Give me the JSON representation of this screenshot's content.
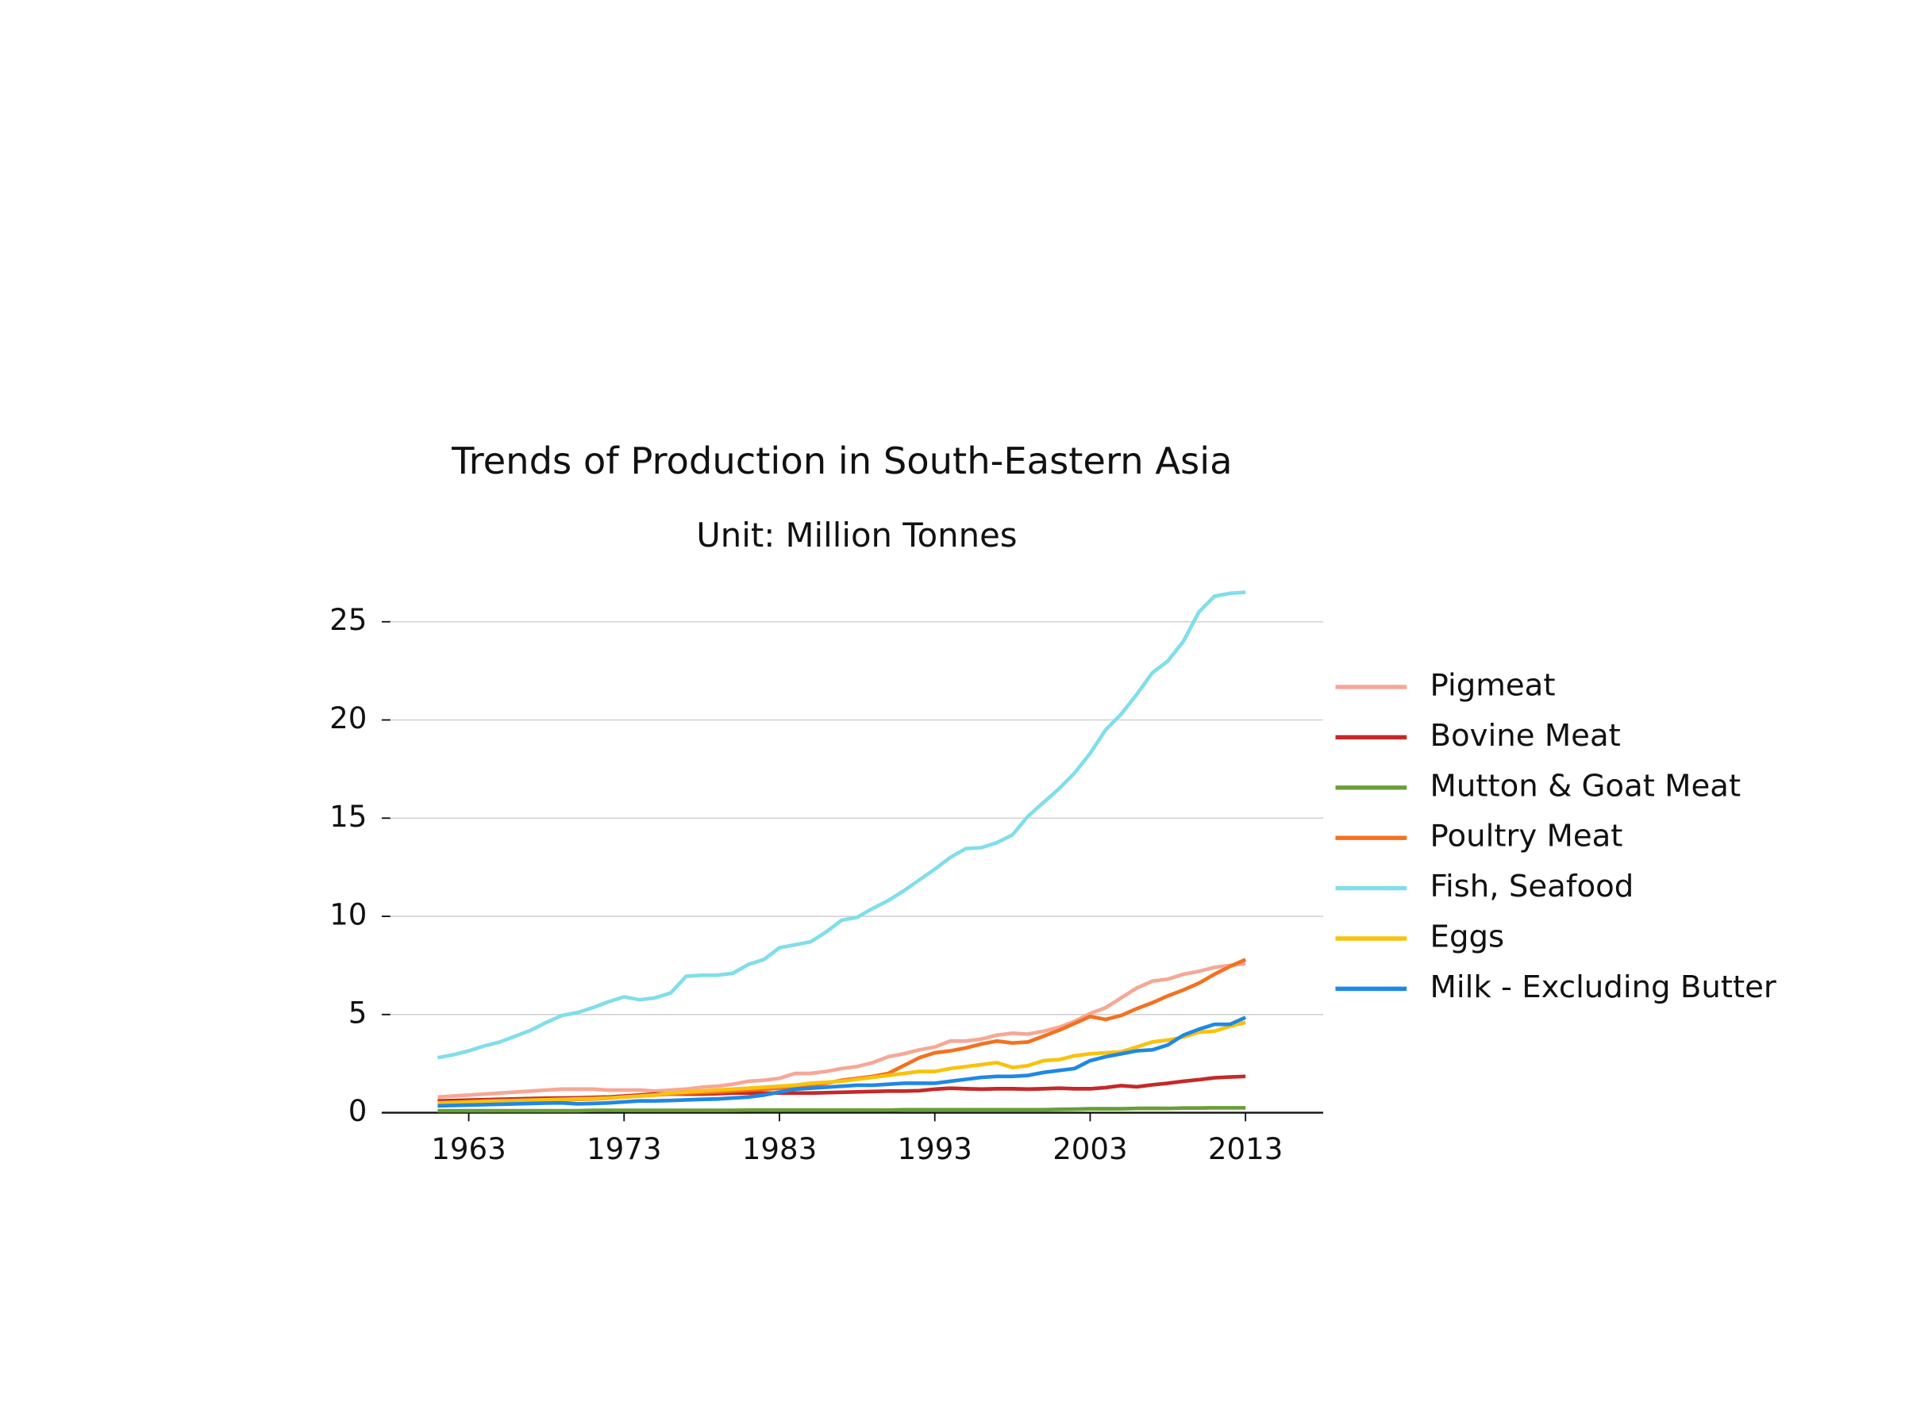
{
  "chart_data": {
    "type": "line",
    "title": "Trends of Production in South-Eastern Asia",
    "subtitle": "Unit: Million Tonnes",
    "x": [
      1961,
      1962,
      1963,
      1964,
      1965,
      1966,
      1967,
      1968,
      1969,
      1970,
      1971,
      1972,
      1973,
      1974,
      1975,
      1976,
      1977,
      1978,
      1979,
      1980,
      1981,
      1982,
      1983,
      1984,
      1985,
      1986,
      1987,
      1988,
      1989,
      1990,
      1991,
      1992,
      1993,
      1994,
      1995,
      1996,
      1997,
      1998,
      1999,
      2000,
      2001,
      2002,
      2003,
      2004,
      2005,
      2006,
      2007,
      2008,
      2009,
      2010,
      2011,
      2012,
      2013
    ],
    "xlim": [
      1957.4,
      2018
    ],
    "xticks": [
      1963,
      1973,
      1983,
      1993,
      2003,
      2013
    ],
    "ylim": [
      0,
      27.8
    ],
    "yticks": [
      0,
      5,
      10,
      15,
      20,
      25
    ],
    "grid": true,
    "legend": "right",
    "series": [
      {
        "name": "Pigmeat",
        "color": "#f6a796",
        "values": [
          0.8,
          0.85,
          0.9,
          0.95,
          1.0,
          1.05,
          1.1,
          1.15,
          1.2,
          1.2,
          1.2,
          1.15,
          1.15,
          1.15,
          1.1,
          1.15,
          1.2,
          1.3,
          1.35,
          1.45,
          1.6,
          1.65,
          1.75,
          2.0,
          2.0,
          2.1,
          2.25,
          2.35,
          2.55,
          2.85,
          3.0,
          3.2,
          3.35,
          3.65,
          3.65,
          3.75,
          3.95,
          4.05,
          4.0,
          4.15,
          4.35,
          4.65,
          5.05,
          5.35,
          5.85,
          6.35,
          6.7,
          6.8,
          7.05,
          7.2,
          7.4,
          7.5,
          7.6
        ]
      },
      {
        "name": "Bovine Meat",
        "color": "#c62828",
        "values": [
          0.6,
          0.62,
          0.64,
          0.66,
          0.68,
          0.7,
          0.72,
          0.74,
          0.75,
          0.76,
          0.78,
          0.8,
          0.85,
          0.9,
          0.95,
          0.95,
          0.95,
          0.95,
          0.97,
          1.0,
          1.0,
          1.0,
          1.0,
          1.0,
          1.0,
          1.02,
          1.04,
          1.06,
          1.08,
          1.1,
          1.1,
          1.12,
          1.2,
          1.25,
          1.22,
          1.2,
          1.22,
          1.22,
          1.2,
          1.22,
          1.25,
          1.22,
          1.22,
          1.28,
          1.38,
          1.32,
          1.42,
          1.5,
          1.6,
          1.68,
          1.78,
          1.82,
          1.85
        ]
      },
      {
        "name": "Mutton & Goat Meat",
        "color": "#689f38",
        "values": [
          0.1,
          0.1,
          0.1,
          0.1,
          0.1,
          0.1,
          0.1,
          0.1,
          0.1,
          0.1,
          0.12,
          0.12,
          0.12,
          0.12,
          0.12,
          0.12,
          0.12,
          0.12,
          0.12,
          0.12,
          0.13,
          0.13,
          0.13,
          0.13,
          0.13,
          0.13,
          0.13,
          0.13,
          0.13,
          0.13,
          0.15,
          0.15,
          0.15,
          0.15,
          0.15,
          0.15,
          0.15,
          0.15,
          0.15,
          0.15,
          0.17,
          0.18,
          0.2,
          0.2,
          0.2,
          0.22,
          0.22,
          0.22,
          0.24,
          0.24,
          0.25,
          0.25,
          0.25
        ]
      },
      {
        "name": "Poultry Meat",
        "color": "#f4711e",
        "values": [
          0.5,
          0.52,
          0.54,
          0.56,
          0.58,
          0.6,
          0.62,
          0.64,
          0.66,
          0.68,
          0.7,
          0.74,
          0.8,
          0.85,
          0.9,
          0.95,
          1.0,
          1.02,
          1.05,
          1.1,
          1.15,
          1.2,
          1.25,
          1.3,
          1.4,
          1.5,
          1.65,
          1.75,
          1.85,
          2.0,
          2.4,
          2.8,
          3.05,
          3.15,
          3.3,
          3.5,
          3.65,
          3.55,
          3.6,
          3.9,
          4.2,
          4.55,
          4.9,
          4.75,
          4.95,
          5.3,
          5.6,
          5.95,
          6.25,
          6.6,
          7.05,
          7.45,
          7.8
        ]
      },
      {
        "name": "Fish, Seafood",
        "color": "#80deea",
        "values": [
          2.8,
          2.95,
          3.15,
          3.4,
          3.6,
          3.9,
          4.2,
          4.6,
          4.95,
          5.1,
          5.35,
          5.65,
          5.9,
          5.75,
          5.85,
          6.1,
          6.95,
          7.0,
          7.0,
          7.1,
          7.55,
          7.8,
          8.4,
          8.55,
          8.7,
          9.2,
          9.8,
          9.95,
          10.4,
          10.8,
          11.3,
          11.85,
          12.4,
          13.0,
          13.45,
          13.5,
          13.75,
          14.15,
          15.1,
          15.8,
          16.5,
          17.3,
          18.3,
          19.5,
          20.3,
          21.3,
          22.4,
          23.0,
          24.0,
          25.5,
          26.3,
          26.45,
          26.5
        ]
      },
      {
        "name": "Eggs",
        "color": "#f9c20c",
        "values": [
          0.5,
          0.52,
          0.55,
          0.58,
          0.6,
          0.62,
          0.64,
          0.66,
          0.68,
          0.7,
          0.72,
          0.75,
          0.8,
          0.85,
          0.9,
          1.0,
          1.05,
          1.1,
          1.15,
          1.2,
          1.25,
          1.3,
          1.35,
          1.4,
          1.5,
          1.55,
          1.6,
          1.7,
          1.8,
          1.9,
          2.0,
          2.1,
          2.1,
          2.25,
          2.35,
          2.45,
          2.55,
          2.3,
          2.4,
          2.65,
          2.7,
          2.9,
          3.0,
          3.05,
          3.1,
          3.35,
          3.6,
          3.7,
          3.85,
          4.1,
          4.15,
          4.4,
          4.6
        ]
      },
      {
        "name": "Milk - Excluding Butter",
        "color": "#1e88e5",
        "values": [
          0.35,
          0.37,
          0.39,
          0.41,
          0.43,
          0.45,
          0.47,
          0.49,
          0.5,
          0.45,
          0.47,
          0.5,
          0.55,
          0.6,
          0.6,
          0.62,
          0.65,
          0.68,
          0.7,
          0.75,
          0.8,
          0.9,
          1.05,
          1.2,
          1.25,
          1.3,
          1.35,
          1.4,
          1.4,
          1.45,
          1.5,
          1.5,
          1.5,
          1.6,
          1.7,
          1.8,
          1.85,
          1.85,
          1.9,
          2.05,
          2.15,
          2.25,
          2.65,
          2.85,
          3.0,
          3.15,
          3.2,
          3.45,
          3.95,
          4.25,
          4.5,
          4.5,
          4.85
        ]
      }
    ]
  }
}
